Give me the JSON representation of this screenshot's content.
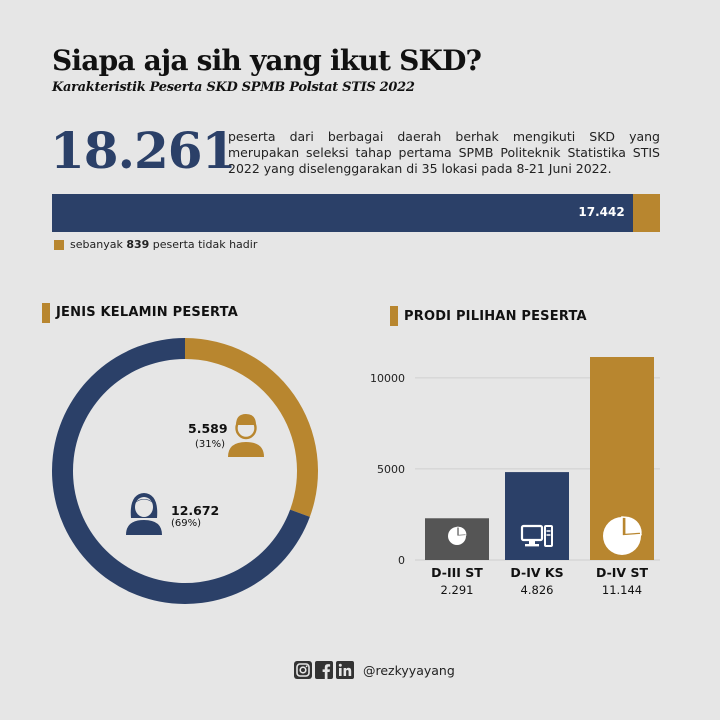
{
  "header": {
    "title": "Siapa aja sih yang ikut SKD?",
    "subtitle": "Karakteristik Peserta SKD SPMB Polstat STIS 2022"
  },
  "summary": {
    "total": "18.261",
    "description": "peserta dari berbagai daerah berhak mengikuti SKD yang merupakan seleksi tahap pertama SPMB Politeknik Statistika STIS 2022 yang diselenggarakan di 35 lokasi pada 8-21 Juni 2022.",
    "present_label": "17.442",
    "absent_prefix": "sebanyak",
    "absent_count": "839",
    "absent_suffix": "peserta tidak hadir"
  },
  "attendance": {
    "total": 18261,
    "present": 17442,
    "absent": 839,
    "colors": {
      "present": "#2b4068",
      "absent": "#b8862f"
    }
  },
  "gender_section": {
    "title": "JENIS KELAMIN PESERTA",
    "male": {
      "value": "5.589",
      "pct": "(31%)",
      "icon": "male-user-icon"
    },
    "female": {
      "value": "12.672",
      "pct": "(69%)",
      "icon": "female-user-icon"
    }
  },
  "prodi_section": {
    "title": "PRODI PILIHAN PESERTA"
  },
  "chart_data": [
    {
      "type": "pie",
      "title": "JENIS KELAMIN PESERTA",
      "categories": [
        "male",
        "female"
      ],
      "values": [
        5589,
        12672
      ],
      "value_labels": [
        "5.589",
        "12.672"
      ],
      "pct_labels": [
        "(31%)",
        "(69%)"
      ],
      "colors": [
        "#b8862f",
        "#2b4068"
      ],
      "donut": true
    },
    {
      "type": "bar",
      "title": "PRODI PILIHAN PESERTA",
      "categories": [
        "D-III ST",
        "D-IV KS",
        "D-IV ST"
      ],
      "values": [
        2291,
        4826,
        11144
      ],
      "value_labels": [
        "2.291",
        "4.826",
        "11.144"
      ],
      "colors": [
        "#555555",
        "#2b4068",
        "#b8862f"
      ],
      "icons": [
        "pie-chart-icon",
        "computer-icon",
        "pie-chart-icon"
      ],
      "ylim": [
        0,
        11144
      ],
      "yticks": [
        0,
        5000,
        10000
      ],
      "ytick_labels": [
        "0",
        "5000",
        "10000"
      ],
      "grid": true
    }
  ],
  "footer": {
    "icons": [
      "instagram-icon",
      "facebook-icon",
      "linkedin-icon"
    ],
    "handle": "@rezkyyayang"
  }
}
